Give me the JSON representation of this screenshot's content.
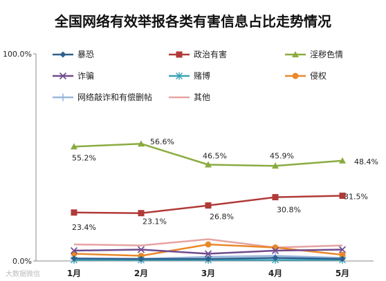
{
  "chart_data": {
    "type": "line",
    "title": "全国网络有效举报各类有害信息占比走势情况",
    "categories": [
      "1月",
      "2月",
      "3月",
      "4月",
      "5月"
    ],
    "ylim": [
      0,
      100
    ],
    "yticks": [
      "0.0%",
      "100.0%"
    ],
    "grid": false,
    "legend_position": "top",
    "series": [
      {
        "name": "暴恐",
        "color": "#2e5f8e",
        "marker": "diamond",
        "values": [
          1.2,
          1.0,
          1.0,
          1.5,
          1.0
        ]
      },
      {
        "name": "政治有害",
        "color": "#b03a37",
        "marker": "square",
        "values": [
          23.4,
          23.1,
          26.8,
          30.8,
          31.5
        ],
        "labels": [
          "23.4%",
          "23.1%",
          "26.8%",
          "30.8%",
          "31.5%"
        ]
      },
      {
        "name": "淫秽色情",
        "color": "#8aab3f",
        "marker": "triangle",
        "values": [
          55.2,
          56.6,
          46.5,
          45.9,
          48.4
        ],
        "labels": [
          "55.2%",
          "56.6%",
          "46.5%",
          "45.9%",
          "48.4%"
        ]
      },
      {
        "name": "诈骗",
        "color": "#6f4a8e",
        "marker": "x",
        "values": [
          5.0,
          5.5,
          3.5,
          5.0,
          5.5
        ]
      },
      {
        "name": "赌博",
        "color": "#3aa3b8",
        "marker": "star",
        "values": [
          0.5,
          0.5,
          0.5,
          0.5,
          0.5
        ]
      },
      {
        "name": "侵权",
        "color": "#e8882a",
        "marker": "circle",
        "values": [
          3.5,
          2.5,
          8.0,
          6.5,
          3.0
        ]
      },
      {
        "name": "网络敲诈和有偿删帖",
        "color": "#9ab6dc",
        "marker": "plus",
        "values": [
          1.0,
          1.0,
          2.0,
          2.5,
          1.5
        ]
      },
      {
        "name": "其他",
        "color": "#e6a3a1",
        "marker": "none",
        "values": [
          8.0,
          7.5,
          10.5,
          6.5,
          7.5
        ]
      }
    ]
  },
  "watermark": "大数据微信"
}
